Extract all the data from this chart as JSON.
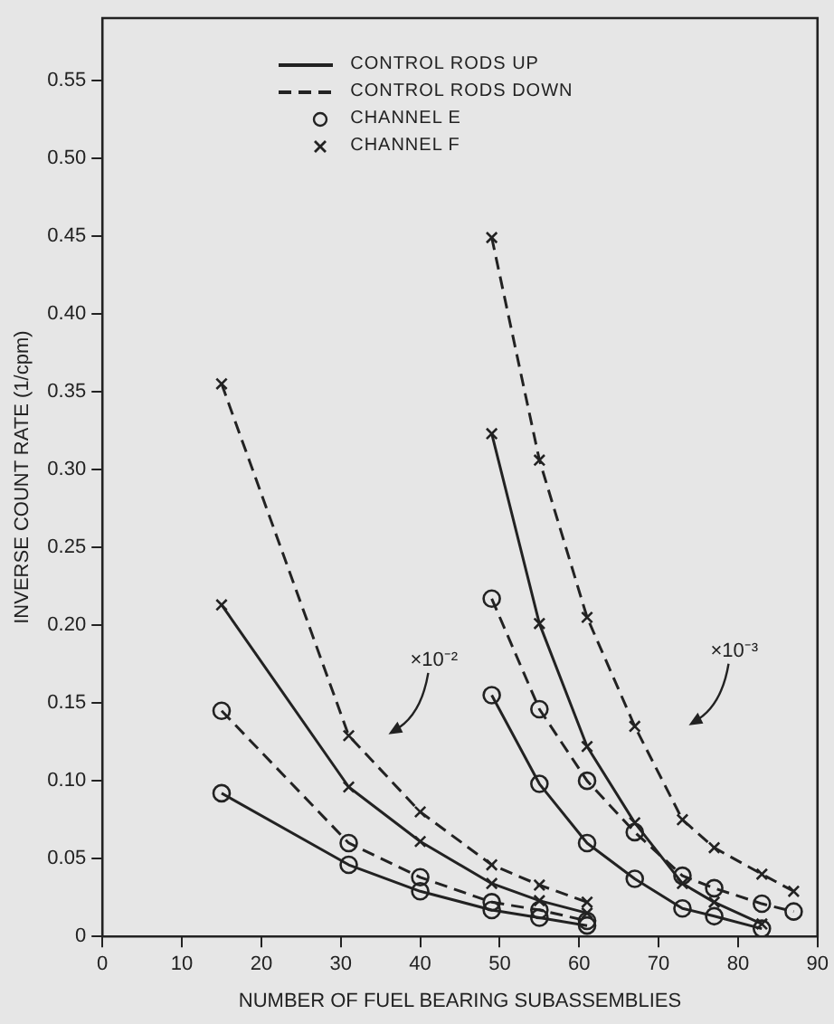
{
  "chart_data": {
    "type": "line",
    "xlabel": "NUMBER OF FUEL BEARING SUBASSEMBLIES",
    "ylabel": "INVERSE COUNT RATE (1/cpm)",
    "xlim": [
      0,
      90
    ],
    "xticks": [
      0,
      10,
      20,
      30,
      40,
      50,
      60,
      70,
      80,
      90
    ],
    "ylim": [
      0,
      0.59
    ],
    "yticks": [
      0,
      0.05,
      {
        "value": 0.1,
        "label": "0.10"
      },
      0.15,
      {
        "value": 0.2,
        "label": "0.20"
      },
      0.25,
      {
        "value": 0.3,
        "label": "0.30"
      },
      0.35,
      {
        "value": 0.4,
        "label": "0.40"
      },
      0.45,
      {
        "value": 0.5,
        "label": "0.50"
      },
      0.55
    ],
    "grid": false,
    "annotations": [
      "CONTROL RODS UP",
      "CONTROL RODS DOWN",
      "CHANNEL E",
      "CHANNEL F",
      "×10⁻²",
      "×10⁻³"
    ],
    "series": [
      {
        "color": "#222222",
        "line_style": "dashed",
        "marker": "cross",
        "x": [
          15,
          31,
          40,
          49,
          55,
          61
        ],
        "values": [
          0.355,
          0.129,
          0.08,
          0.046,
          0.033,
          0.022
        ]
      },
      {
        "color": "#222222",
        "line_style": "solid",
        "marker": "cross",
        "x": [
          15,
          31,
          40,
          49,
          55,
          61
        ],
        "values": [
          0.213,
          0.096,
          0.061,
          0.034,
          0.023,
          0.015
        ]
      },
      {
        "color": "#222222",
        "line_style": "dashed",
        "marker": "circle",
        "x": [
          15,
          31,
          40,
          49,
          55,
          61
        ],
        "values": [
          0.145,
          0.06,
          0.038,
          0.022,
          0.017,
          0.01
        ]
      },
      {
        "color": "#222222",
        "line_style": "solid",
        "marker": "circle",
        "x": [
          15,
          31,
          40,
          49,
          55,
          61
        ],
        "values": [
          0.092,
          0.046,
          0.029,
          0.017,
          0.012,
          0.007
        ]
      },
      {
        "color": "#222222",
        "line_style": "dashed",
        "marker": "cross",
        "x": [
          49,
          55,
          61,
          67,
          73,
          77,
          83,
          87
        ],
        "values": [
          0.449,
          0.306,
          0.205,
          0.135,
          0.075,
          0.057,
          0.04,
          0.029
        ]
      },
      {
        "color": "#222222",
        "line_style": "solid",
        "marker": "cross",
        "x": [
          49,
          55,
          61,
          67,
          73,
          77,
          83
        ],
        "values": [
          0.323,
          0.201,
          0.122,
          0.073,
          0.034,
          0.022,
          0.008
        ]
      },
      {
        "color": "#222222",
        "line_style": "dashed",
        "marker": "circle",
        "x": [
          49,
          55,
          61,
          67,
          73,
          77,
          83,
          87
        ],
        "values": [
          0.217,
          0.146,
          0.1,
          0.067,
          0.039,
          0.031,
          0.021,
          0.016
        ]
      },
      {
        "color": "#222222",
        "line_style": "solid",
        "marker": "circle",
        "x": [
          49,
          55,
          61,
          67,
          73,
          77,
          83
        ],
        "values": [
          0.155,
          0.098,
          0.06,
          0.037,
          0.018,
          0.013,
          0.005
        ]
      }
    ]
  }
}
